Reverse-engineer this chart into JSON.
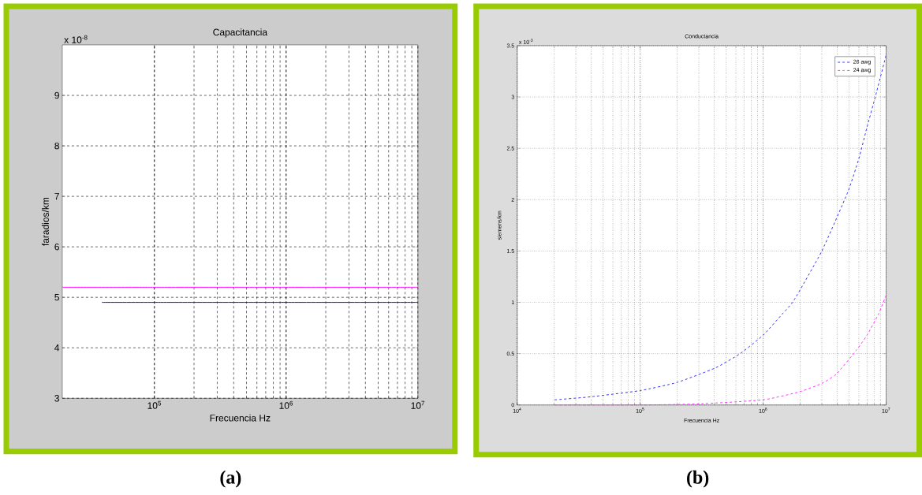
{
  "chart_data": [
    {
      "type": "line",
      "title": "Capacitancia",
      "xlabel": "Frecuencia Hz",
      "ylabel": "faradios/km",
      "log": "x",
      "grid": true,
      "line_style": "solid",
      "xlim": [
        20000,
        10000000
      ],
      "xticks": [
        {
          "value": 100000,
          "label": "10$^{5}$"
        },
        {
          "value": 1000000,
          "label": "10$^{6}$"
        },
        {
          "value": 10000000,
          "label": "10$^{7}$"
        }
      ],
      "ylim": [
        3,
        10
      ],
      "yticks": [
        3,
        4,
        5,
        6,
        7,
        8,
        9
      ],
      "series": [
        {
          "color": "#ff00ff",
          "x": [
            20000,
            100000,
            1000000,
            10000000
          ],
          "values": [
            5.2,
            5.2,
            5.2,
            5.2
          ]
        },
        {
          "color": "#0000ff",
          "x": [
            40000,
            100000,
            1000000,
            10000000
          ],
          "values": [
            4.9,
            4.9,
            4.9,
            4.9
          ]
        }
      ],
      "annotations": [
        "x 10$^{-8}$",
        "(a)"
      ]
    },
    {
      "type": "line",
      "title": "Conductancia",
      "xlabel": "Frecuencia Hz",
      "ylabel": "siemens/km",
      "log": "x",
      "grid": true,
      "line_style": "dashed",
      "legend": "top right",
      "xlim": [
        10000,
        10000000
      ],
      "xticks": [
        {
          "value": 10000,
          "label": "10$^{4}$"
        },
        {
          "value": 100000,
          "label": "10$^{5}$"
        },
        {
          "value": 1000000,
          "label": "10$^{6}$"
        },
        {
          "value": 10000000,
          "label": "10$^{7}$"
        }
      ],
      "ylim": [
        0,
        3.5
      ],
      "yticks": [
        0,
        0.5,
        1,
        1.5,
        2,
        2.5,
        3,
        3.5
      ],
      "series": [
        {
          "name": "26 awg",
          "color": "#3333ff",
          "x": [
            20200,
            40000,
            100000,
            200000,
            407000,
            650000,
            1000000,
            1440000,
            1780000,
            3000000,
            4860000,
            6000000,
            7000000,
            8200000,
            10000000
          ],
          "values": [
            0.05,
            0.08,
            0.14,
            0.22,
            0.36,
            0.5,
            0.68,
            0.89,
            1.02,
            1.5,
            2.07,
            2.4,
            2.71,
            3.01,
            3.41
          ]
        },
        {
          "name": "24 awg",
          "color": "#ff33ff",
          "x": [
            20200,
            100000,
            296000,
            1000000,
            2000000,
            3000000,
            3930000,
            5700000,
            7000000,
            8700000,
            10000000
          ],
          "values": [
            0,
            0,
            0.01,
            0.05,
            0.13,
            0.21,
            0.3,
            0.53,
            0.68,
            0.89,
            1.07
          ]
        }
      ],
      "annotations": [
        "x 10$^{-3}$",
        "(b)"
      ]
    }
  ]
}
